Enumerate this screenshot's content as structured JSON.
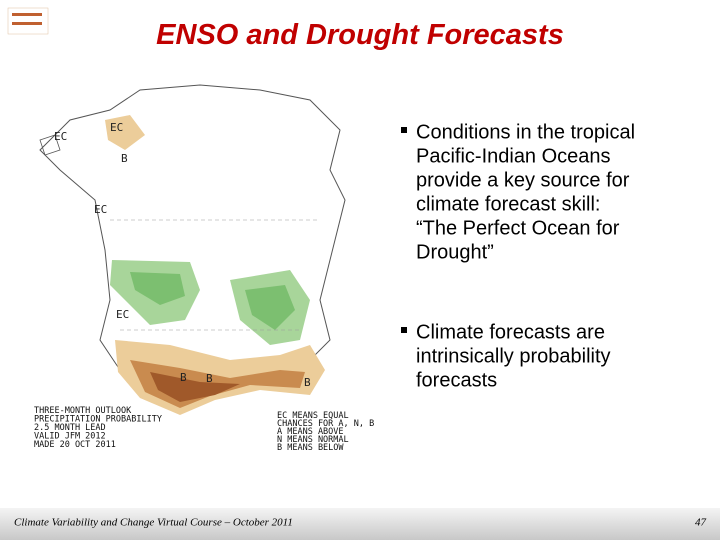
{
  "header": {
    "title": "ENSO and Drought Forecasts"
  },
  "map": {
    "labels": [
      "EC",
      "EC",
      "B",
      "EC",
      "EC",
      "B",
      "B",
      "B"
    ],
    "legend_left": [
      "THREE-MONTH OUTLOOK",
      "PRECIPITATION PROBABILITY",
      "2.5 MONTH LEAD",
      "VALID JFM 2012",
      "MADE 20 OCT 2011"
    ],
    "legend_right": [
      "EC MEANS EQUAL",
      "CHANCES FOR A, N, B",
      "A MEANS ABOVE",
      "N MEANS NORMAL",
      "B MEANS BELOW"
    ]
  },
  "bullets": [
    [
      "Conditions in the tropical",
      "Pacific-Indian Oceans",
      "provide a key source for",
      "climate forecast skill:",
      "“The Perfect Ocean for",
      "Drought”"
    ],
    [
      "Climate forecasts are",
      "intrinsically probability",
      "forecasts"
    ]
  ],
  "footer": {
    "text": "Climate Variability and Change Virtual Course – October 2011",
    "page": "47"
  }
}
